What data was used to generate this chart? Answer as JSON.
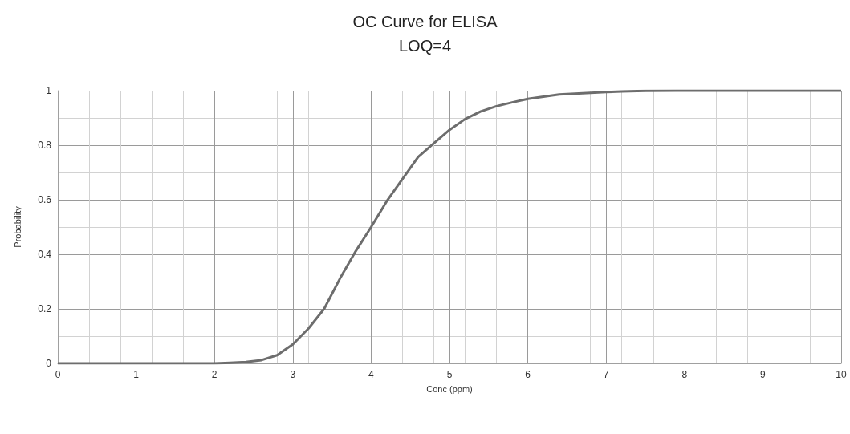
{
  "chart_data": {
    "type": "line",
    "title": "OC Curve for ELISA",
    "subtitle": "LOQ=4",
    "xlabel": "Conc (ppm)",
    "ylabel": "Probability",
    "x": [
      0,
      1,
      2,
      2.2,
      2.4,
      2.6,
      2.8,
      3,
      3.2,
      3.4,
      3.6,
      3.8,
      4,
      4.2,
      4.4,
      4.6,
      4.8,
      5,
      5.2,
      5.4,
      5.6,
      5.8,
      6,
      6.2,
      6.4,
      6.6,
      6.8,
      7,
      7.2,
      7.5,
      7.9,
      10
    ],
    "series": [
      {
        "color": "#6d6d6d",
        "values": [
          0,
          0,
          0,
          0.002,
          0.005,
          0.012,
          0.03,
          0.07,
          0.128,
          0.2,
          0.31,
          0.41,
          0.5,
          0.595,
          0.676,
          0.757,
          0.807,
          0.856,
          0.896,
          0.924,
          0.943,
          0.957,
          0.97,
          0.978,
          0.986,
          0.989,
          0.992,
          0.995,
          0.997,
          0.999,
          1,
          1
        ]
      }
    ],
    "xlim": [
      0,
      10
    ],
    "xticks": [
      0,
      1,
      2,
      3,
      4,
      5,
      6,
      7,
      8,
      9,
      10
    ],
    "ylim": [
      0,
      1
    ],
    "yticks": [
      0,
      0.2,
      0.4,
      0.6,
      0.8,
      1
    ],
    "grid": true,
    "marker": "none",
    "line_style": "solid"
  }
}
